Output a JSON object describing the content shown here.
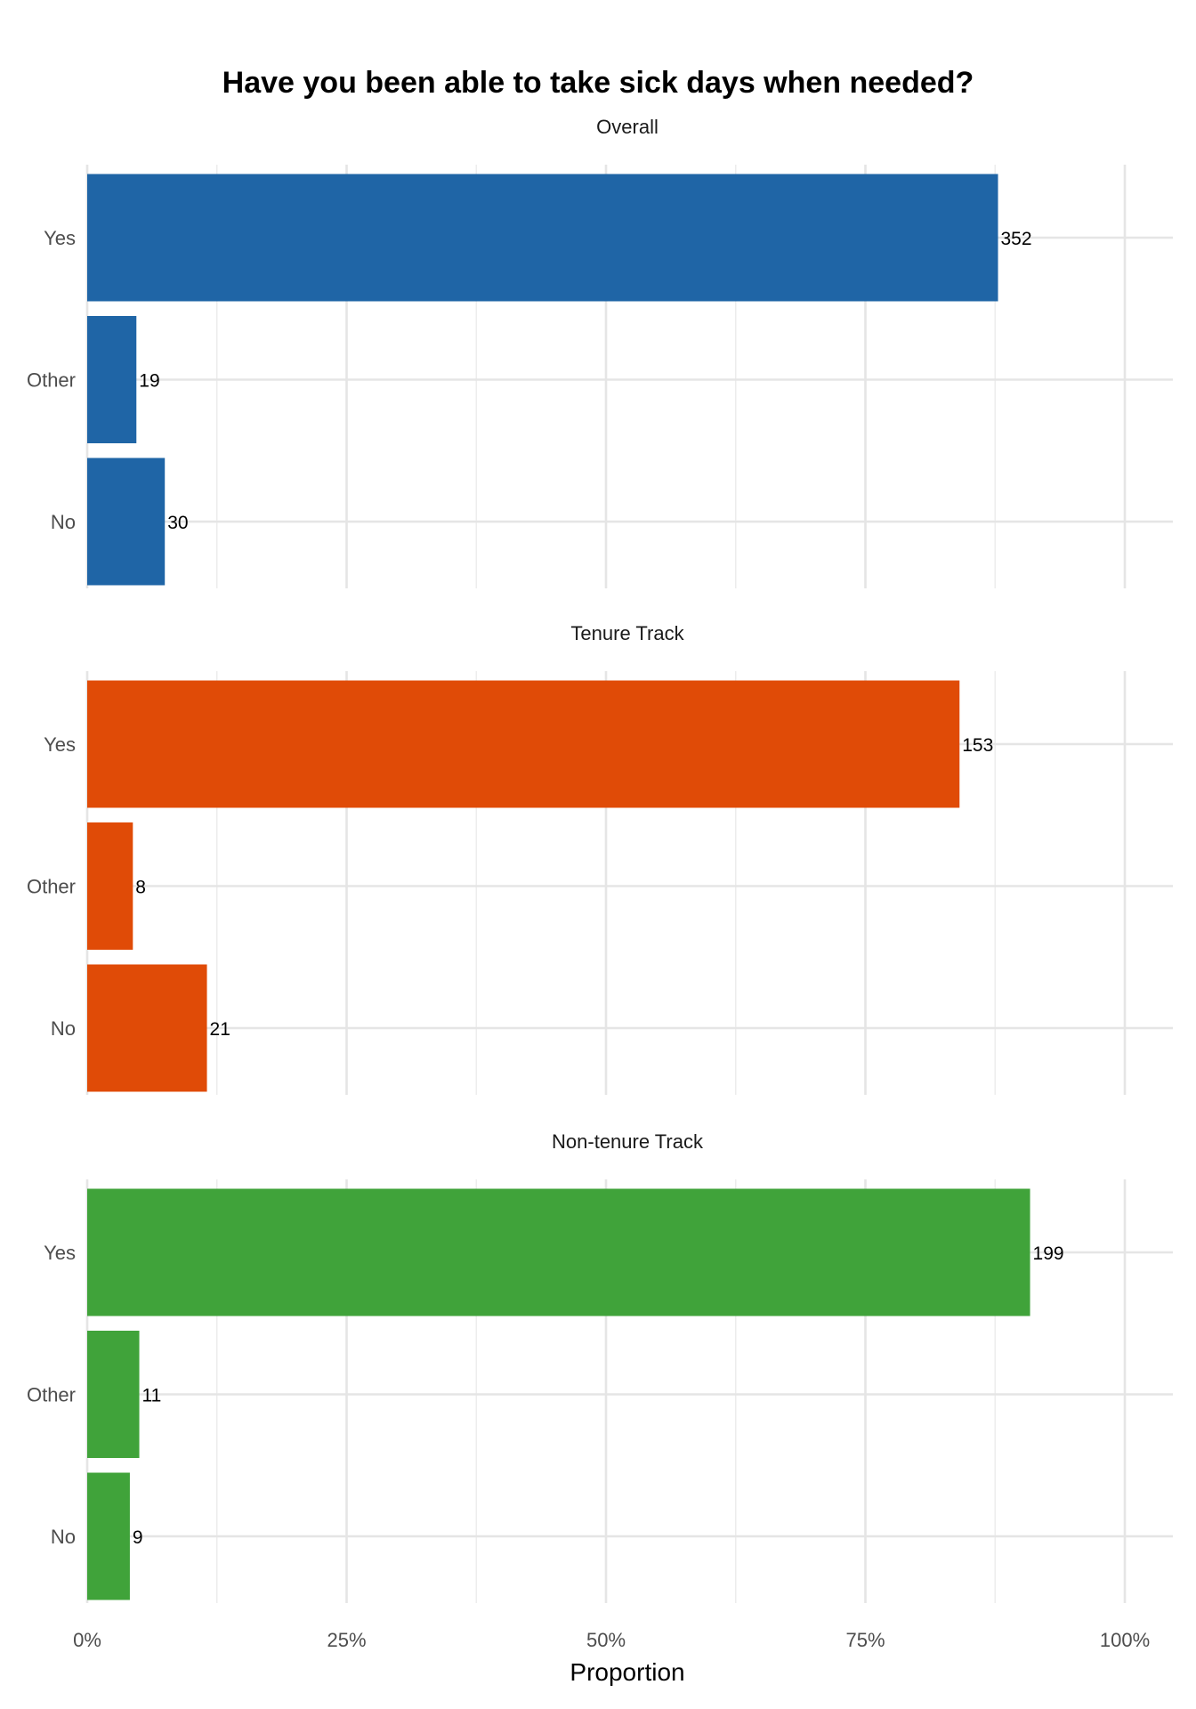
{
  "chart_data": {
    "type": "bar",
    "orientation": "horizontal",
    "title": "Have you been able to take sick days when needed?",
    "xlabel": "Proportion",
    "ylabel": "",
    "xlim": [
      0,
      1.05
    ],
    "x_ticks": [
      0,
      0.25,
      0.5,
      0.75,
      1.0
    ],
    "x_tick_labels": [
      "0%",
      "25%",
      "50%",
      "75%",
      "100%"
    ],
    "grid": true,
    "legend": "none",
    "categories": [
      "Yes",
      "Other",
      "No"
    ],
    "panels": [
      {
        "name": "Overall",
        "color": "#1f65a6",
        "proportions": [
          0.8778,
          0.0474,
          0.0748
        ],
        "counts": [
          "352",
          "19",
          "30"
        ]
      },
      {
        "name": "Tenure Track",
        "color": "#e04b07",
        "proportions": [
          0.8407,
          0.044,
          0.1154
        ],
        "counts": [
          "153",
          "8",
          "21"
        ]
      },
      {
        "name": "Non-tenure Track",
        "color": "#40a33a",
        "proportions": [
          0.9087,
          0.0502,
          0.0411
        ],
        "counts": [
          "199",
          "11",
          "9"
        ]
      }
    ]
  }
}
